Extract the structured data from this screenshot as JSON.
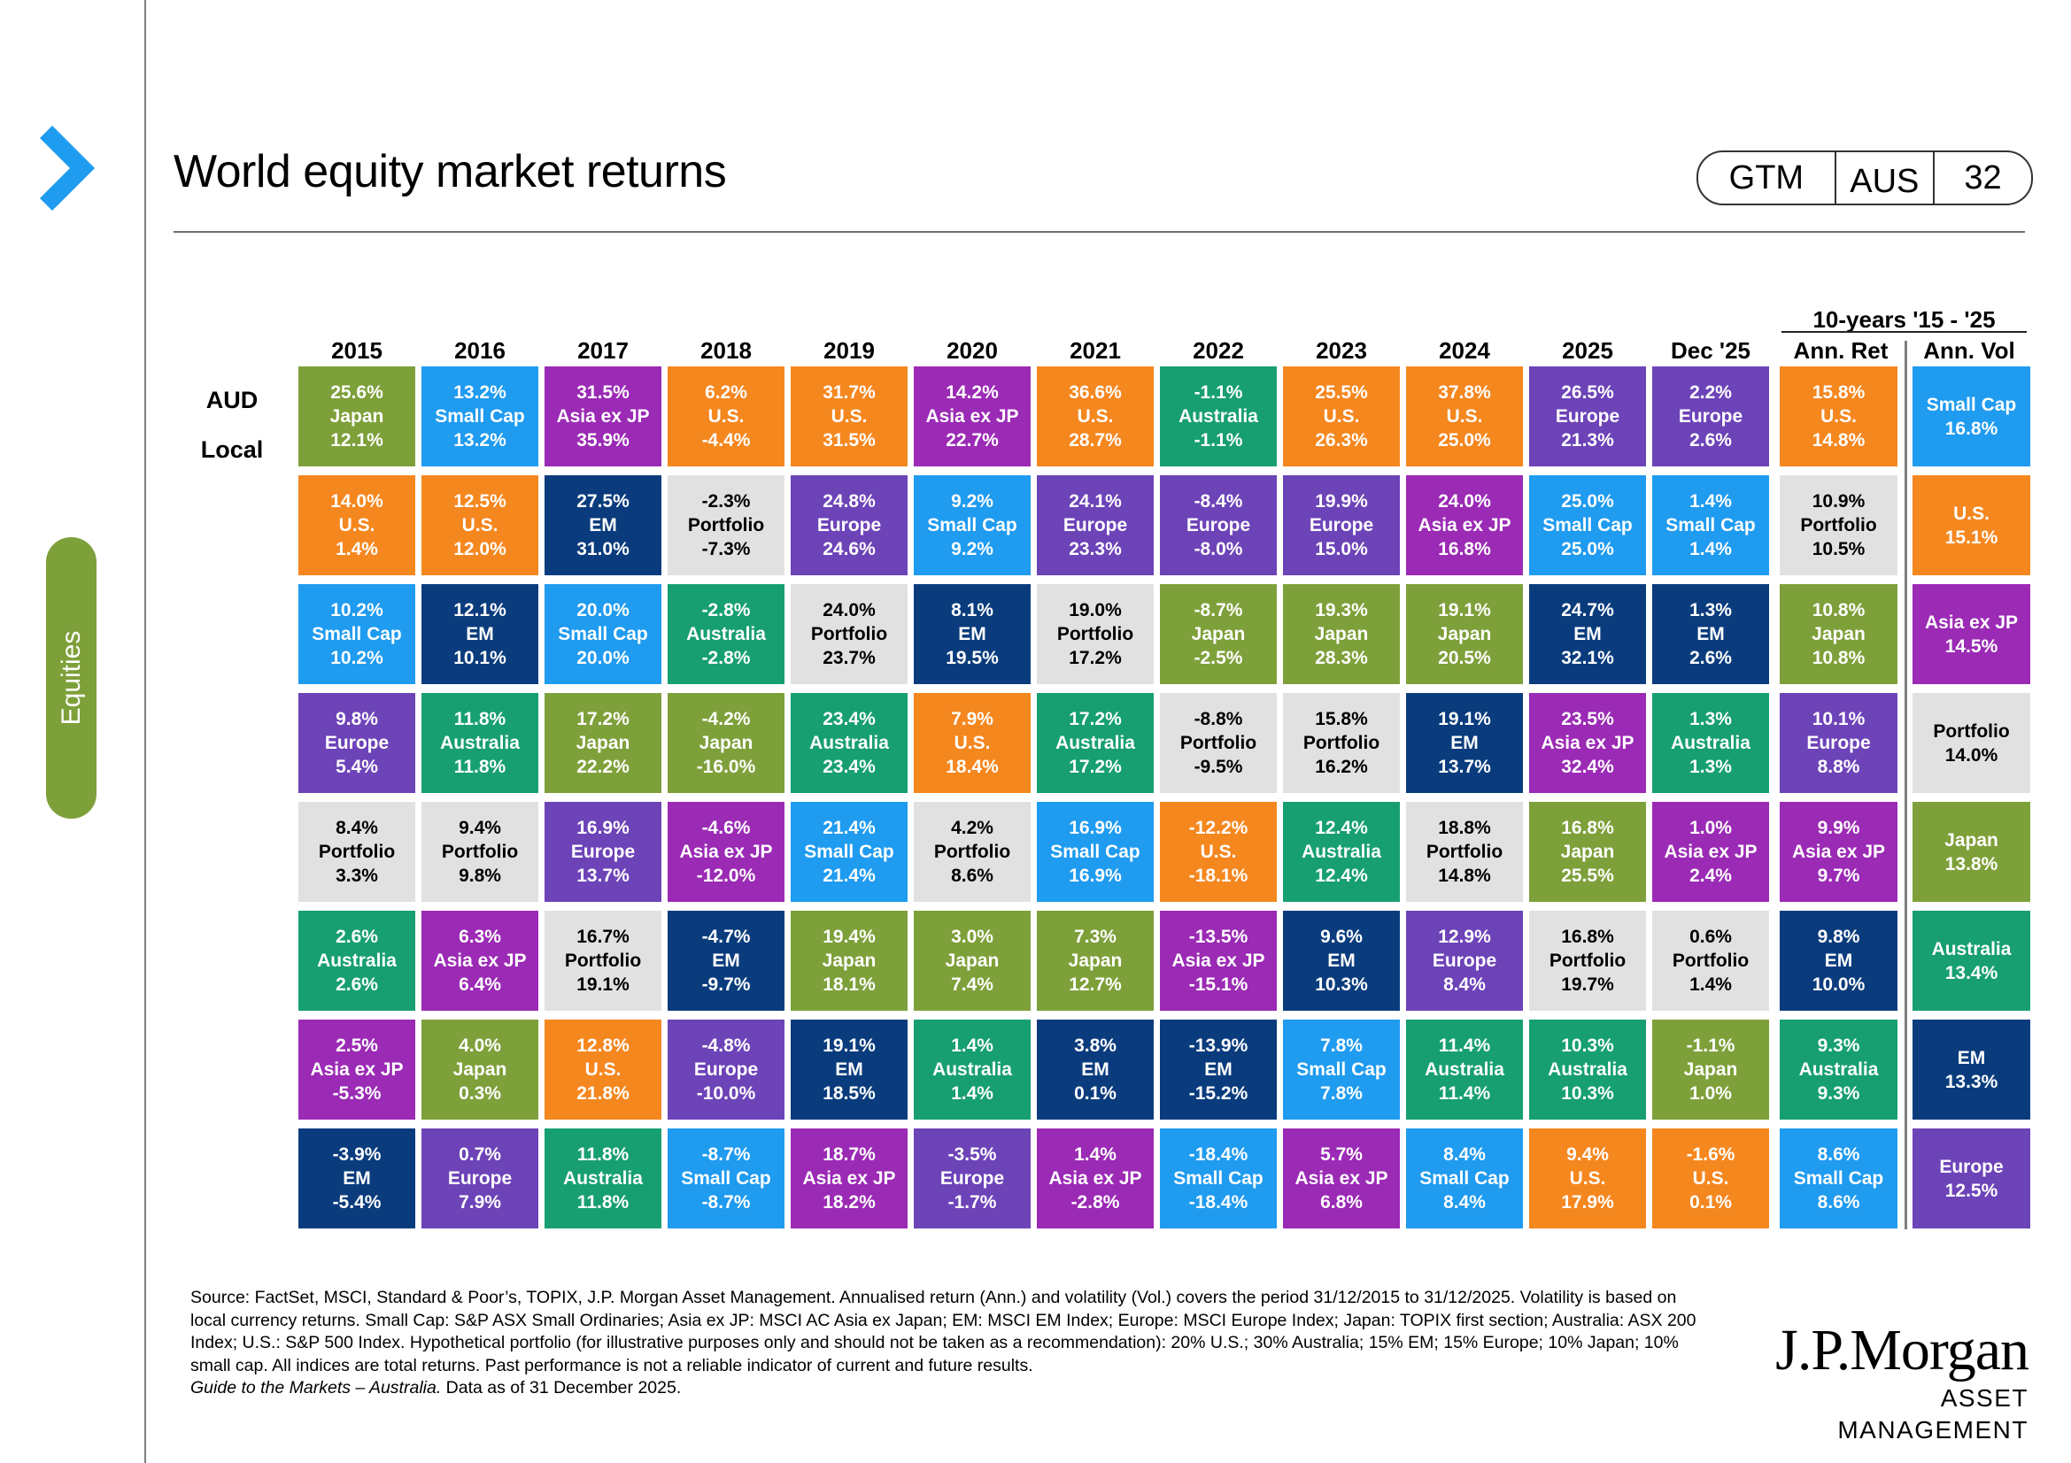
{
  "page": {
    "title": "World equity market returns",
    "side_tab": "Equities"
  },
  "badge": {
    "a": "GTM",
    "b": "AUS",
    "c": "32"
  },
  "colors": {
    "Japan": "#7ea03a",
    "Small Cap": "#1f9bf0",
    "Asia ex JP": "#9b2ab5",
    "U.S.": "#f5871f",
    "Australia": "#179f72",
    "EM": "#0a3c7d",
    "Europe": "#6d43b8",
    "Portfolio": "#e1e1e1"
  },
  "chart_data": {
    "type": "table",
    "title": "World equity market returns",
    "row_labels": {
      "top": "AUD",
      "bottom": "Local"
    },
    "columns": [
      "2015",
      "2016",
      "2017",
      "2018",
      "2019",
      "2020",
      "2021",
      "2022",
      "2023",
      "2024",
      "2025",
      "Dec '25"
    ],
    "ten_year": {
      "heading": "10-years '15 - '25",
      "ret_label": "Ann. Ret",
      "vol_label": "Ann. Vol"
    },
    "years": [
      [
        {
          "aud": "25.6%",
          "asset": "Japan",
          "local": "12.1%"
        },
        {
          "aud": "14.0%",
          "asset": "U.S.",
          "local": "1.4%"
        },
        {
          "aud": "10.2%",
          "asset": "Small Cap",
          "local": "10.2%"
        },
        {
          "aud": "9.8%",
          "asset": "Europe",
          "local": "5.4%"
        },
        {
          "aud": "8.4%",
          "asset": "Portfolio",
          "local": "3.3%"
        },
        {
          "aud": "2.6%",
          "asset": "Australia",
          "local": "2.6%"
        },
        {
          "aud": "2.5%",
          "asset": "Asia ex JP",
          "local": "-5.3%"
        },
        {
          "aud": "-3.9%",
          "asset": "EM",
          "local": "-5.4%"
        }
      ],
      [
        {
          "aud": "13.2%",
          "asset": "Small Cap",
          "local": "13.2%"
        },
        {
          "aud": "12.5%",
          "asset": "U.S.",
          "local": "12.0%"
        },
        {
          "aud": "12.1%",
          "asset": "EM",
          "local": "10.1%"
        },
        {
          "aud": "11.8%",
          "asset": "Australia",
          "local": "11.8%"
        },
        {
          "aud": "9.4%",
          "asset": "Portfolio",
          "local": "9.8%"
        },
        {
          "aud": "6.3%",
          "asset": "Asia ex JP",
          "local": "6.4%"
        },
        {
          "aud": "4.0%",
          "asset": "Japan",
          "local": "0.3%"
        },
        {
          "aud": "0.7%",
          "asset": "Europe",
          "local": "7.9%"
        }
      ],
      [
        {
          "aud": "31.5%",
          "asset": "Asia ex JP",
          "local": "35.9%"
        },
        {
          "aud": "27.5%",
          "asset": "EM",
          "local": "31.0%"
        },
        {
          "aud": "20.0%",
          "asset": "Small Cap",
          "local": "20.0%"
        },
        {
          "aud": "17.2%",
          "asset": "Japan",
          "local": "22.2%"
        },
        {
          "aud": "16.9%",
          "asset": "Europe",
          "local": "13.7%"
        },
        {
          "aud": "16.7%",
          "asset": "Portfolio",
          "local": "19.1%"
        },
        {
          "aud": "12.8%",
          "asset": "U.S.",
          "local": "21.8%"
        },
        {
          "aud": "11.8%",
          "asset": "Australia",
          "local": "11.8%"
        }
      ],
      [
        {
          "aud": "6.2%",
          "asset": "U.S.",
          "local": "-4.4%"
        },
        {
          "aud": "-2.3%",
          "asset": "Portfolio",
          "local": "-7.3%"
        },
        {
          "aud": "-2.8%",
          "asset": "Australia",
          "local": "-2.8%"
        },
        {
          "aud": "-4.2%",
          "asset": "Japan",
          "local": "-16.0%"
        },
        {
          "aud": "-4.6%",
          "asset": "Asia ex JP",
          "local": "-12.0%"
        },
        {
          "aud": "-4.7%",
          "asset": "EM",
          "local": "-9.7%"
        },
        {
          "aud": "-4.8%",
          "asset": "Europe",
          "local": "-10.0%"
        },
        {
          "aud": "-8.7%",
          "asset": "Small Cap",
          "local": "-8.7%"
        }
      ],
      [
        {
          "aud": "31.7%",
          "asset": "U.S.",
          "local": "31.5%"
        },
        {
          "aud": "24.8%",
          "asset": "Europe",
          "local": "24.6%"
        },
        {
          "aud": "24.0%",
          "asset": "Portfolio",
          "local": "23.7%"
        },
        {
          "aud": "23.4%",
          "asset": "Australia",
          "local": "23.4%"
        },
        {
          "aud": "21.4%",
          "asset": "Small Cap",
          "local": "21.4%"
        },
        {
          "aud": "19.4%",
          "asset": "Japan",
          "local": "18.1%"
        },
        {
          "aud": "19.1%",
          "asset": "EM",
          "local": "18.5%"
        },
        {
          "aud": "18.7%",
          "asset": "Asia ex JP",
          "local": "18.2%"
        }
      ],
      [
        {
          "aud": "14.2%",
          "asset": "Asia ex JP",
          "local": "22.7%"
        },
        {
          "aud": "9.2%",
          "asset": "Small Cap",
          "local": "9.2%"
        },
        {
          "aud": "8.1%",
          "asset": "EM",
          "local": "19.5%"
        },
        {
          "aud": "7.9%",
          "asset": "U.S.",
          "local": "18.4%"
        },
        {
          "aud": "4.2%",
          "asset": "Portfolio",
          "local": "8.6%"
        },
        {
          "aud": "3.0%",
          "asset": "Japan",
          "local": "7.4%"
        },
        {
          "aud": "1.4%",
          "asset": "Australia",
          "local": "1.4%"
        },
        {
          "aud": "-3.5%",
          "asset": "Europe",
          "local": "-1.7%"
        }
      ],
      [
        {
          "aud": "36.6%",
          "asset": "U.S.",
          "local": "28.7%"
        },
        {
          "aud": "24.1%",
          "asset": "Europe",
          "local": "23.3%"
        },
        {
          "aud": "19.0%",
          "asset": "Portfolio",
          "local": "17.2%"
        },
        {
          "aud": "17.2%",
          "asset": "Australia",
          "local": "17.2%"
        },
        {
          "aud": "16.9%",
          "asset": "Small Cap",
          "local": "16.9%"
        },
        {
          "aud": "7.3%",
          "asset": "Japan",
          "local": "12.7%"
        },
        {
          "aud": "3.8%",
          "asset": "EM",
          "local": "0.1%"
        },
        {
          "aud": "1.4%",
          "asset": "Asia ex JP",
          "local": "-2.8%"
        }
      ],
      [
        {
          "aud": "-1.1%",
          "asset": "Australia",
          "local": "-1.1%"
        },
        {
          "aud": "-8.4%",
          "asset": "Europe",
          "local": "-8.0%"
        },
        {
          "aud": "-8.7%",
          "asset": "Japan",
          "local": "-2.5%"
        },
        {
          "aud": "-8.8%",
          "asset": "Portfolio",
          "local": "-9.5%"
        },
        {
          "aud": "-12.2%",
          "asset": "U.S.",
          "local": "-18.1%"
        },
        {
          "aud": "-13.5%",
          "asset": "Asia ex JP",
          "local": "-15.1%"
        },
        {
          "aud": "-13.9%",
          "asset": "EM",
          "local": "-15.2%"
        },
        {
          "aud": "-18.4%",
          "asset": "Small Cap",
          "local": "-18.4%"
        }
      ],
      [
        {
          "aud": "25.5%",
          "asset": "U.S.",
          "local": "26.3%"
        },
        {
          "aud": "19.9%",
          "asset": "Europe",
          "local": "15.0%"
        },
        {
          "aud": "19.3%",
          "asset": "Japan",
          "local": "28.3%"
        },
        {
          "aud": "15.8%",
          "asset": "Portfolio",
          "local": "16.2%"
        },
        {
          "aud": "12.4%",
          "asset": "Australia",
          "local": "12.4%"
        },
        {
          "aud": "9.6%",
          "asset": "EM",
          "local": "10.3%"
        },
        {
          "aud": "7.8%",
          "asset": "Small Cap",
          "local": "7.8%"
        },
        {
          "aud": "5.7%",
          "asset": "Asia ex JP",
          "local": "6.8%"
        }
      ],
      [
        {
          "aud": "37.8%",
          "asset": "U.S.",
          "local": "25.0%"
        },
        {
          "aud": "24.0%",
          "asset": "Asia ex JP",
          "local": "16.8%"
        },
        {
          "aud": "19.1%",
          "asset": "Japan",
          "local": "20.5%"
        },
        {
          "aud": "19.1%",
          "asset": "EM",
          "local": "13.7%"
        },
        {
          "aud": "18.8%",
          "asset": "Portfolio",
          "local": "14.8%"
        },
        {
          "aud": "12.9%",
          "asset": "Europe",
          "local": "8.4%"
        },
        {
          "aud": "11.4%",
          "asset": "Australia",
          "local": "11.4%"
        },
        {
          "aud": "8.4%",
          "asset": "Small Cap",
          "local": "8.4%"
        }
      ],
      [
        {
          "aud": "26.5%",
          "asset": "Europe",
          "local": "21.3%"
        },
        {
          "aud": "25.0%",
          "asset": "Small Cap",
          "local": "25.0%"
        },
        {
          "aud": "24.7%",
          "asset": "EM",
          "local": "32.1%"
        },
        {
          "aud": "23.5%",
          "asset": "Asia ex JP",
          "local": "32.4%"
        },
        {
          "aud": "16.8%",
          "asset": "Japan",
          "local": "25.5%"
        },
        {
          "aud": "16.8%",
          "asset": "Portfolio",
          "local": "19.7%"
        },
        {
          "aud": "10.3%",
          "asset": "Australia",
          "local": "10.3%"
        },
        {
          "aud": "9.4%",
          "asset": "U.S.",
          "local": "17.9%"
        }
      ],
      [
        {
          "aud": "2.2%",
          "asset": "Europe",
          "local": "2.6%"
        },
        {
          "aud": "1.4%",
          "asset": "Small Cap",
          "local": "1.4%"
        },
        {
          "aud": "1.3%",
          "asset": "EM",
          "local": "2.6%"
        },
        {
          "aud": "1.3%",
          "asset": "Australia",
          "local": "1.3%"
        },
        {
          "aud": "1.0%",
          "asset": "Asia ex JP",
          "local": "2.4%"
        },
        {
          "aud": "0.6%",
          "asset": "Portfolio",
          "local": "1.4%"
        },
        {
          "aud": "-1.1%",
          "asset": "Japan",
          "local": "1.0%"
        },
        {
          "aud": "-1.6%",
          "asset": "U.S.",
          "local": "0.1%"
        }
      ]
    ],
    "ann_ret": [
      {
        "aud": "15.8%",
        "asset": "U.S.",
        "local": "14.8%"
      },
      {
        "aud": "10.9%",
        "asset": "Portfolio",
        "local": "10.5%"
      },
      {
        "aud": "10.8%",
        "asset": "Japan",
        "local": "10.8%"
      },
      {
        "aud": "10.1%",
        "asset": "Europe",
        "local": "8.8%"
      },
      {
        "aud": "9.9%",
        "asset": "Asia ex JP",
        "local": "9.7%"
      },
      {
        "aud": "9.8%",
        "asset": "EM",
        "local": "10.0%"
      },
      {
        "aud": "9.3%",
        "asset": "Australia",
        "local": "9.3%"
      },
      {
        "aud": "8.6%",
        "asset": "Small Cap",
        "local": "8.6%"
      }
    ],
    "ann_vol": [
      {
        "asset": "Small Cap",
        "vol": "16.8%"
      },
      {
        "asset": "U.S.",
        "vol": "15.1%"
      },
      {
        "asset": "Asia ex JP",
        "vol": "14.5%"
      },
      {
        "asset": "Portfolio",
        "vol": "14.0%"
      },
      {
        "asset": "Japan",
        "vol": "13.8%"
      },
      {
        "asset": "Australia",
        "vol": "13.4%"
      },
      {
        "asset": "EM",
        "vol": "13.3%"
      },
      {
        "asset": "Europe",
        "vol": "12.5%"
      }
    ]
  },
  "footnote": {
    "source": "Source: FactSet, MSCI, Standard & Poor’s, TOPIX, J.P. Morgan Asset Management. Annualised return (Ann.) and volatility (Vol.) covers the period  31/12/2015 to 31/12/2025. Volatility is based on local currency returns. Small Cap: S&P ASX Small Ordinaries; Asia ex JP: MSCI AC Asia ex Japan; EM: MSCI EM Index; Europe: MSCI Europe Index; Japan: TOPIX first section; Australia: ASX 200 Index; U.S.: S&P 500 Index. Hypothetical portfolio (for illustrative purposes only and should not be taken as a recommendation): 20% U.S.; 30% Australia; 15% EM; 15% Europe; 10% Japan; 10% small cap. All indices are total returns. Past performance is not a reliable indicator of current and future results.",
    "guide_italic": "Guide to the Markets – Australia.",
    "guide_rest": " Data as of 31 December 2025."
  },
  "logo": {
    "name": "J.P.Morgan",
    "sub": "ASSET MANAGEMENT"
  }
}
